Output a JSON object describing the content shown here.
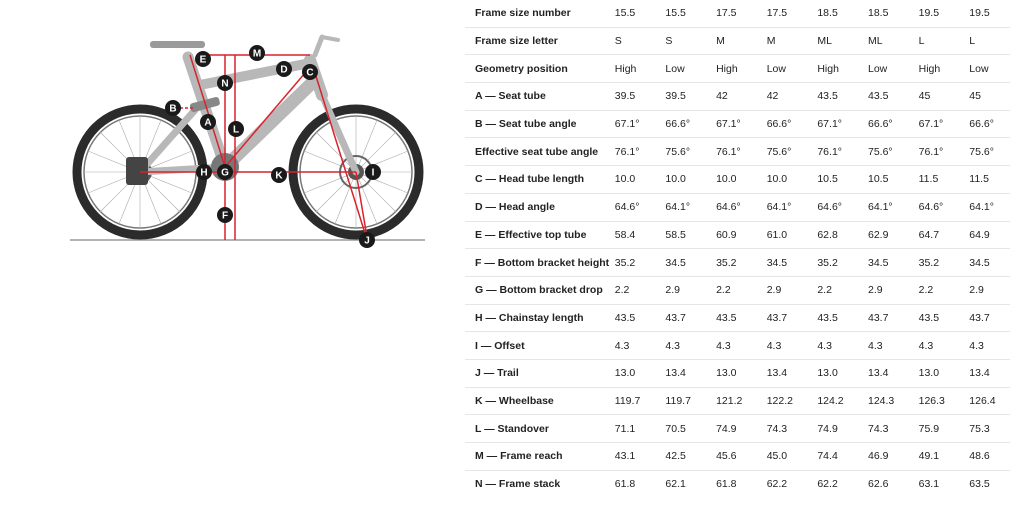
{
  "colors": {
    "marker": "#1a1a1a",
    "dimension_line": "#d9232d",
    "frame": "#b8b8b8",
    "tire": "#2b2b2b"
  },
  "diagram": {
    "markers": [
      "A",
      "B",
      "C",
      "D",
      "E",
      "F",
      "G",
      "H",
      "I",
      "J",
      "K",
      "L",
      "M",
      "N"
    ]
  },
  "table": {
    "rows": [
      {
        "label": "Frame size number",
        "values": [
          "15.5",
          "15.5",
          "17.5",
          "17.5",
          "18.5",
          "18.5",
          "19.5",
          "19.5"
        ]
      },
      {
        "label": "Frame size letter",
        "values": [
          "S",
          "S",
          "M",
          "M",
          "ML",
          "ML",
          "L",
          "L"
        ]
      },
      {
        "label": "Geometry position",
        "values": [
          "High",
          "Low",
          "High",
          "Low",
          "High",
          "Low",
          "High",
          "Low"
        ]
      },
      {
        "label": "A — Seat tube",
        "values": [
          "39.5",
          "39.5",
          "42",
          "42",
          "43.5",
          "43.5",
          "45",
          "45"
        ]
      },
      {
        "label": "B — Seat tube angle",
        "values": [
          "67.1°",
          "66.6°",
          "67.1°",
          "66.6°",
          "67.1°",
          "66.6°",
          "67.1°",
          "66.6°"
        ]
      },
      {
        "label": "Effective seat tube angle",
        "values": [
          "76.1°",
          "75.6°",
          "76.1°",
          "75.6°",
          "76.1°",
          "75.6°",
          "76.1°",
          "75.6°"
        ]
      },
      {
        "label": "C — Head tube length",
        "values": [
          "10.0",
          "10.0",
          "10.0",
          "10.0",
          "10.5",
          "10.5",
          "11.5",
          "11.5"
        ]
      },
      {
        "label": "D — Head angle",
        "values": [
          "64.6°",
          "64.1°",
          "64.6°",
          "64.1°",
          "64.6°",
          "64.1°",
          "64.6°",
          "64.1°"
        ]
      },
      {
        "label": "E — Effective top tube",
        "values": [
          "58.4",
          "58.5",
          "60.9",
          "61.0",
          "62.8",
          "62.9",
          "64.7",
          "64.9"
        ]
      },
      {
        "label": "F — Bottom bracket height",
        "values": [
          "35.2",
          "34.5",
          "35.2",
          "34.5",
          "35.2",
          "34.5",
          "35.2",
          "34.5"
        ]
      },
      {
        "label": "G — Bottom bracket drop",
        "values": [
          "2.2",
          "2.9",
          "2.2",
          "2.9",
          "2.2",
          "2.9",
          "2.2",
          "2.9"
        ]
      },
      {
        "label": "H — Chainstay length",
        "values": [
          "43.5",
          "43.7",
          "43.5",
          "43.7",
          "43.5",
          "43.7",
          "43.5",
          "43.7"
        ]
      },
      {
        "label": "I — Offset",
        "values": [
          "4.3",
          "4.3",
          "4.3",
          "4.3",
          "4.3",
          "4.3",
          "4.3",
          "4.3"
        ]
      },
      {
        "label": "J — Trail",
        "values": [
          "13.0",
          "13.4",
          "13.0",
          "13.4",
          "13.0",
          "13.4",
          "13.0",
          "13.4"
        ]
      },
      {
        "label": "K — Wheelbase",
        "values": [
          "119.7",
          "119.7",
          "121.2",
          "122.2",
          "124.2",
          "124.3",
          "126.3",
          "126.4"
        ]
      },
      {
        "label": "L — Standover",
        "values": [
          "71.1",
          "70.5",
          "74.9",
          "74.3",
          "74.9",
          "74.3",
          "75.9",
          "75.3"
        ]
      },
      {
        "label": "M — Frame reach",
        "values": [
          "43.1",
          "42.5",
          "45.6",
          "45.0",
          "74.4",
          "46.9",
          "49.1",
          "48.6"
        ]
      },
      {
        "label": "N — Frame stack",
        "values": [
          "61.8",
          "62.1",
          "61.8",
          "62.2",
          "62.2",
          "62.6",
          "63.1",
          "63.5"
        ]
      }
    ]
  }
}
